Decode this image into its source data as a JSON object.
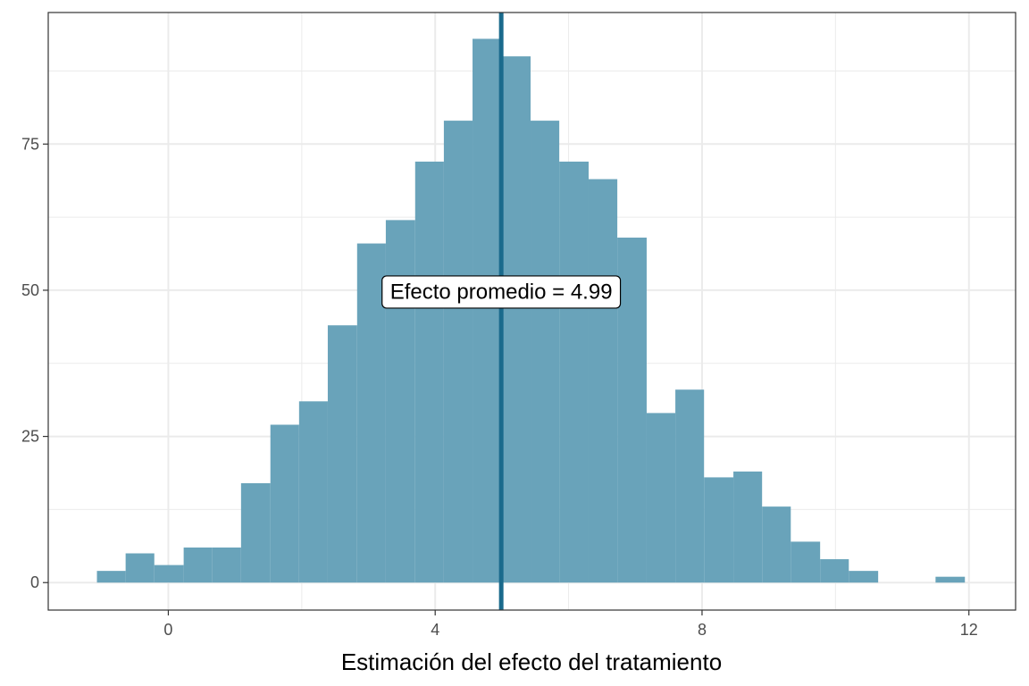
{
  "chart_data": {
    "type": "bar",
    "subtype": "histogram",
    "title": "",
    "xlabel": "Estimación del efecto del tratamiento",
    "ylabel": "",
    "xlim": [
      -1.8,
      12.7
    ],
    "ylim": [
      -4.7,
      97.5
    ],
    "xticks": [
      0,
      4,
      8,
      12
    ],
    "yticks": [
      0,
      25,
      50,
      75
    ],
    "grid": true,
    "bin_width": 0.434,
    "bins": [
      {
        "x0": -1.07,
        "x1": -0.64,
        "count": 2
      },
      {
        "x0": -0.64,
        "x1": -0.21,
        "count": 5
      },
      {
        "x0": -0.21,
        "x1": 0.23,
        "count": 3
      },
      {
        "x0": 0.23,
        "x1": 0.66,
        "count": 6
      },
      {
        "x0": 0.66,
        "x1": 1.09,
        "count": 6
      },
      {
        "x0": 1.09,
        "x1": 1.53,
        "count": 17
      },
      {
        "x0": 1.53,
        "x1": 1.96,
        "count": 27
      },
      {
        "x0": 1.96,
        "x1": 2.39,
        "count": 31
      },
      {
        "x0": 2.39,
        "x1": 2.83,
        "count": 44
      },
      {
        "x0": 2.83,
        "x1": 3.26,
        "count": 58
      },
      {
        "x0": 3.26,
        "x1": 3.7,
        "count": 62
      },
      {
        "x0": 3.7,
        "x1": 4.13,
        "count": 72
      },
      {
        "x0": 4.13,
        "x1": 4.56,
        "count": 79
      },
      {
        "x0": 4.56,
        "x1": 5.0,
        "count": 93
      },
      {
        "x0": 5.0,
        "x1": 5.43,
        "count": 90
      },
      {
        "x0": 5.43,
        "x1": 5.86,
        "count": 79
      },
      {
        "x0": 5.86,
        "x1": 6.3,
        "count": 72
      },
      {
        "x0": 6.3,
        "x1": 6.73,
        "count": 69
      },
      {
        "x0": 6.73,
        "x1": 7.17,
        "count": 59
      },
      {
        "x0": 7.17,
        "x1": 7.6,
        "count": 29
      },
      {
        "x0": 7.6,
        "x1": 8.03,
        "count": 33
      },
      {
        "x0": 8.03,
        "x1": 8.47,
        "count": 18
      },
      {
        "x0": 8.47,
        "x1": 8.9,
        "count": 19
      },
      {
        "x0": 8.9,
        "x1": 9.33,
        "count": 13
      },
      {
        "x0": 9.33,
        "x1": 9.77,
        "count": 7
      },
      {
        "x0": 9.77,
        "x1": 10.2,
        "count": 4
      },
      {
        "x0": 10.2,
        "x1": 10.64,
        "count": 2
      },
      {
        "x0": 10.64,
        "x1": 11.07,
        "count": 0
      },
      {
        "x0": 11.07,
        "x1": 11.5,
        "count": 0
      },
      {
        "x0": 11.5,
        "x1": 11.94,
        "count": 1
      }
    ],
    "mean_line": {
      "x": 4.99
    },
    "annotation": {
      "text": "Efecto promedio = 4.99",
      "x": 4.99,
      "y": 50
    },
    "colors": {
      "bar_fill": "#69a3ba",
      "mean_line": "#1a6a8c",
      "grid": "#ebebeb",
      "panel_border": "#333333"
    }
  }
}
